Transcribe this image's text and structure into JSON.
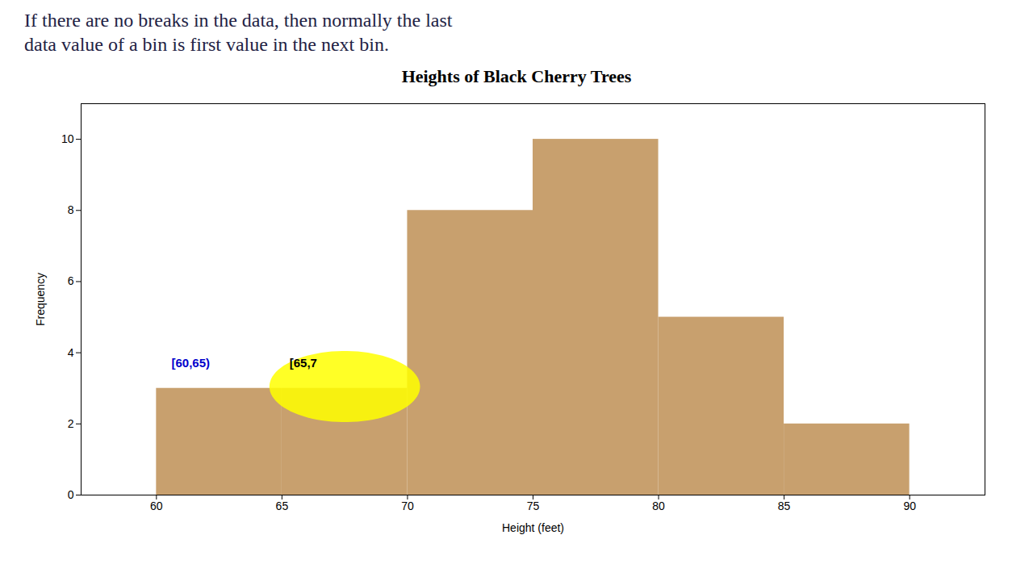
{
  "chart_data": {
    "type": "histogram",
    "title": "Heights of Black Cherry Trees",
    "subtitle": [
      "If there are no breaks in the data, then normally the last",
      "data value of a bin is first value in the next bin."
    ],
    "xlabel": "Height (feet)",
    "ylabel": "Frequency",
    "bins": [
      60,
      65,
      70,
      75,
      80,
      85,
      90
    ],
    "values": [
      3,
      3,
      8,
      10,
      5,
      2
    ],
    "color": "#C8A06E",
    "xlim": [
      57,
      93
    ],
    "ylim": [
      0,
      11
    ],
    "xticks": [
      60,
      65,
      70,
      75,
      80,
      85,
      90
    ],
    "yticks": [
      0,
      2,
      4,
      6,
      8,
      10
    ],
    "grid": false,
    "annotations": [
      {
        "text": "[60,65)",
        "x": 60.6,
        "y": 3.6,
        "color": "#0000CC"
      },
      {
        "text": "[65,7",
        "x": 65.3,
        "y": 3.6,
        "color": "#000000"
      }
    ],
    "ellipse": {
      "x": 67.5,
      "y": 3.05,
      "width": 6.0,
      "height": 2.0,
      "color": "#FFFF00"
    }
  }
}
